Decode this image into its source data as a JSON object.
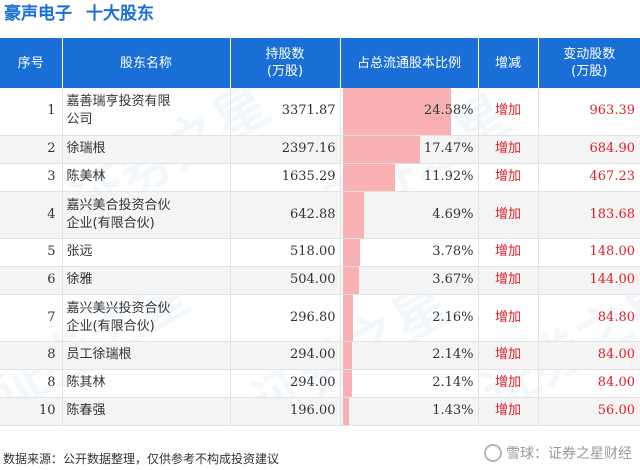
{
  "header": {
    "company": "豪声电子",
    "subject": "十大股东"
  },
  "columns": {
    "index": "序号",
    "name": "股东名称",
    "shares_l1": "持股数",
    "shares_l2": "(万股)",
    "ratio": "占总流通股本比例",
    "change_type": "增减",
    "change_l1": "变动股数",
    "change_l2": "(万股)"
  },
  "chart_data": {
    "type": "table",
    "columns": [
      "序号",
      "股东名称",
      "持股数(万股)",
      "占总流通股本比例",
      "增减",
      "变动股数(万股)"
    ],
    "rows": [
      {
        "index": "1",
        "name_lines": [
          "嘉善瑞亨投资有限",
          "公司"
        ],
        "shares": "3371.87",
        "ratio_pct": 24.58,
        "ratio": "24.58%",
        "change_type": "增加",
        "change": "963.39"
      },
      {
        "index": "2",
        "name_lines": [
          "徐瑞根"
        ],
        "shares": "2397.16",
        "ratio_pct": 17.47,
        "ratio": "17.47%",
        "change_type": "增加",
        "change": "684.90"
      },
      {
        "index": "3",
        "name_lines": [
          "陈美林"
        ],
        "shares": "1635.29",
        "ratio_pct": 11.92,
        "ratio": "11.92%",
        "change_type": "增加",
        "change": "467.23"
      },
      {
        "index": "4",
        "name_lines": [
          "嘉兴美合投资合伙",
          "企业(有限合伙)"
        ],
        "shares": "642.88",
        "ratio_pct": 4.69,
        "ratio": "4.69%",
        "change_type": "增加",
        "change": "183.68"
      },
      {
        "index": "5",
        "name_lines": [
          "张远"
        ],
        "shares": "518.00",
        "ratio_pct": 3.78,
        "ratio": "3.78%",
        "change_type": "增加",
        "change": "148.00"
      },
      {
        "index": "6",
        "name_lines": [
          "徐雅"
        ],
        "shares": "504.00",
        "ratio_pct": 3.67,
        "ratio": "3.67%",
        "change_type": "增加",
        "change": "144.00"
      },
      {
        "index": "7",
        "name_lines": [
          "嘉兴美兴投资合伙",
          "企业(有限合伙)"
        ],
        "shares": "296.80",
        "ratio_pct": 2.16,
        "ratio": "2.16%",
        "change_type": "增加",
        "change": "84.80"
      },
      {
        "index": "8",
        "name_lines": [
          "员工徐瑞根"
        ],
        "shares": "294.00",
        "ratio_pct": 2.14,
        "ratio": "2.14%",
        "change_type": "增加",
        "change": "84.00"
      },
      {
        "index": "8",
        "name_lines": [
          "陈其林"
        ],
        "shares": "294.00",
        "ratio_pct": 2.14,
        "ratio": "2.14%",
        "change_type": "增加",
        "change": "84.00"
      },
      {
        "index": "10",
        "name_lines": [
          "陈春强"
        ],
        "shares": "196.00",
        "ratio_pct": 1.43,
        "ratio": "1.43%",
        "change_type": "增加",
        "change": "56.00"
      }
    ],
    "bar_color": "#f9b0b3",
    "header_color": "#1a6fd6",
    "change_color": "#e0202a"
  },
  "footer": {
    "source": "数据来源：公开数据整理，仅供参考不构成投资建议",
    "brand": "雪球：证券之星财经"
  }
}
